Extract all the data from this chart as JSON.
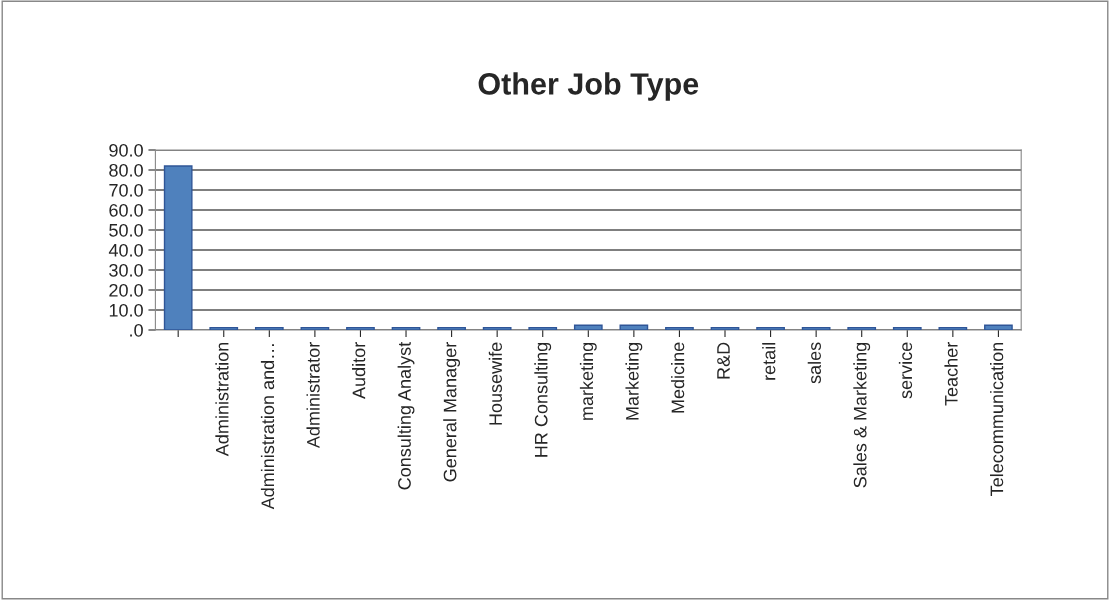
{
  "chart_data": {
    "type": "bar",
    "title": "Other Job Type",
    "categories": [
      null,
      "Administration",
      "Administration and…",
      "Administrator",
      "Auditor",
      "Consulting Analyst",
      "General Manager",
      "Housewife",
      "HR Consulting",
      "marketing",
      "Marketing",
      "Medicine",
      "R&D",
      "retail",
      "sales",
      "Sales & Marketing",
      "service",
      "Teacher",
      "Telecommunication"
    ],
    "values": [
      82,
      1.2,
      1.2,
      1.2,
      1.2,
      1.2,
      1.2,
      1.2,
      1.2,
      2.4,
      2.4,
      1.2,
      1.2,
      1.2,
      1.2,
      1.2,
      1.2,
      1.2,
      2.4
    ],
    "color": "#4f81bd",
    "ylim": [
      0,
      90
    ],
    "yticks": [
      {
        "value": 0,
        "label": ".0"
      },
      {
        "value": 10,
        "label": "10.0"
      },
      {
        "value": 20,
        "label": "20.0"
      },
      {
        "value": 30,
        "label": "30.0"
      },
      {
        "value": 40,
        "label": "40.0"
      },
      {
        "value": 50,
        "label": "50.0"
      },
      {
        "value": 60,
        "label": "60.0"
      },
      {
        "value": 70,
        "label": "70.0"
      },
      {
        "value": 80,
        "label": "80.0"
      },
      {
        "value": 90,
        "label": "90.0"
      }
    ],
    "grid": "y"
  }
}
